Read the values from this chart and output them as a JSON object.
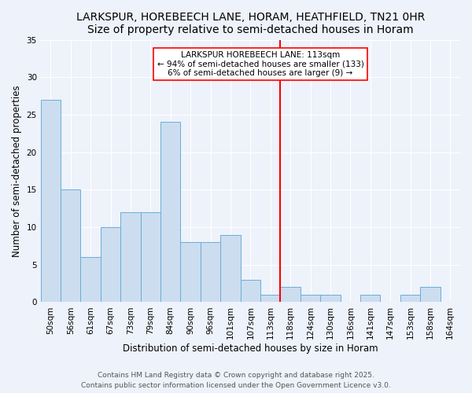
{
  "title": "LARKSPUR, HOREBEECH LANE, HORAM, HEATHFIELD, TN21 0HR",
  "subtitle": "Size of property relative to semi-detached houses in Horam",
  "xlabel": "Distribution of semi-detached houses by size in Horam",
  "ylabel": "Number of semi-detached properties",
  "bin_labels": [
    "50sqm",
    "56sqm",
    "61sqm",
    "67sqm",
    "73sqm",
    "79sqm",
    "84sqm",
    "90sqm",
    "96sqm",
    "101sqm",
    "107sqm",
    "113sqm",
    "118sqm",
    "124sqm",
    "130sqm",
    "136sqm",
    "141sqm",
    "147sqm",
    "153sqm",
    "158sqm",
    "164sqm"
  ],
  "counts": [
    27,
    15,
    6,
    10,
    12,
    12,
    24,
    8,
    8,
    9,
    3,
    1,
    2,
    1,
    1,
    0,
    1,
    0,
    1,
    2,
    0
  ],
  "bar_color": "#ccddf0",
  "bar_edge_color": "#6aaed6",
  "vline_index": 11,
  "vline_color": "red",
  "annotation_title": "LARKSPUR HOREBEECH LANE: 113sqm",
  "annotation_line1": "← 94% of semi-detached houses are smaller (133)",
  "annotation_line2": "6% of semi-detached houses are larger (9) →",
  "ylim": [
    0,
    35
  ],
  "yticks": [
    0,
    5,
    10,
    15,
    20,
    25,
    30,
    35
  ],
  "footer1": "Contains HM Land Registry data © Crown copyright and database right 2025.",
  "footer2": "Contains public sector information licensed under the Open Government Licence v3.0.",
  "bg_color": "#eef2fa",
  "grid_color": "white",
  "title_fontsize": 10,
  "axis_label_fontsize": 8.5,
  "tick_fontsize": 7.5,
  "annotation_fontsize": 7.5,
  "footer_fontsize": 6.5
}
